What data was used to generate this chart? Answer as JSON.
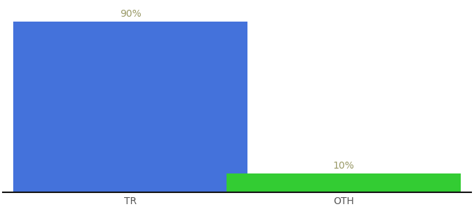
{
  "categories": [
    "TR",
    "OTH"
  ],
  "values": [
    90,
    10
  ],
  "bar_colors": [
    "#4472db",
    "#33cc33"
  ],
  "label_texts": [
    "90%",
    "10%"
  ],
  "label_color": "#999966",
  "ylim": [
    0,
    100
  ],
  "background_color": "#ffffff",
  "tick_label_color": "#555555",
  "tick_label_fontsize": 10,
  "bar_label_fontsize": 10,
  "axis_line_color": "#111111",
  "bar_width": 0.55,
  "xlim": [
    -0.5,
    1.5
  ]
}
